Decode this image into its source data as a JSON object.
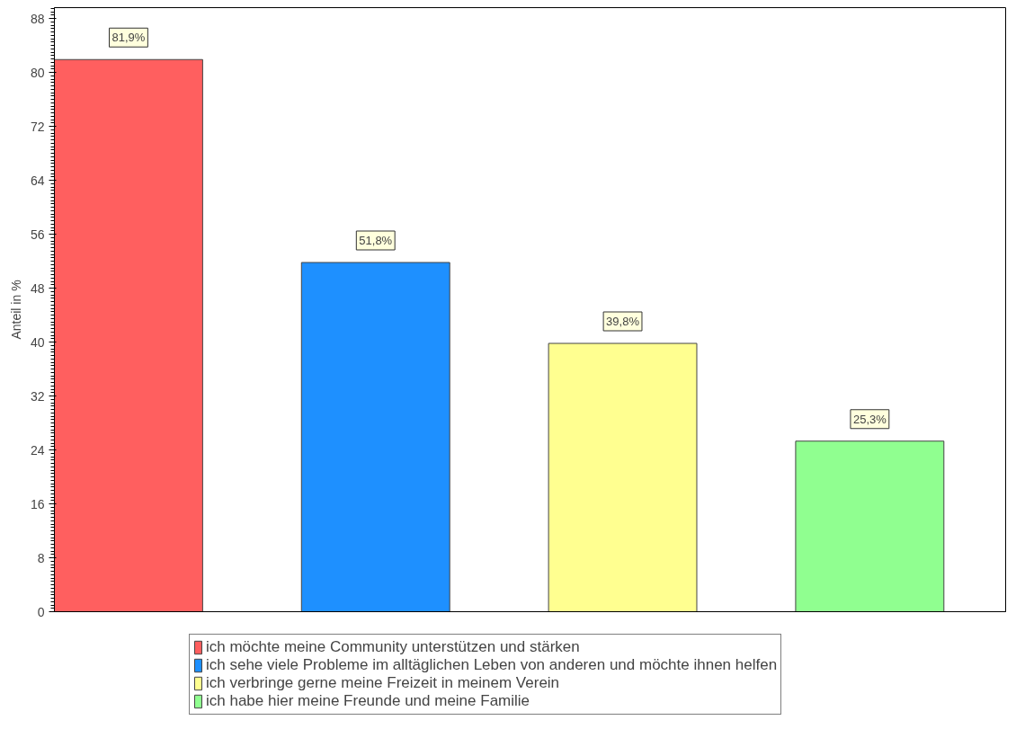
{
  "chart_data": {
    "type": "bar",
    "ylabel": "Anteil in %",
    "categories": [
      null,
      null,
      null,
      null
    ],
    "series": [
      {
        "name": "ich möchte meine Community unterstützen und stärken",
        "color": "#ff5f5f",
        "values": [
          81.9,
          null,
          null,
          null
        ],
        "value_labels": [
          "81,9%",
          null,
          null,
          null
        ]
      },
      {
        "name": "ich sehe viele Probleme im alltäglichen Leben von anderen und möchte ihnen helfen",
        "color": "#1e90ff",
        "values": [
          null,
          51.8,
          null,
          null
        ],
        "value_labels": [
          null,
          "51,8%",
          null,
          null
        ]
      },
      {
        "name": "ich verbringe gerne meine Freizeit in meinem Verein",
        "color": "#ffff90",
        "values": [
          null,
          null,
          39.8,
          null
        ],
        "value_labels": [
          null,
          null,
          "39,8%",
          null
        ]
      },
      {
        "name": "ich habe hier meine Freunde und meine Familie",
        "color": "#90ff90",
        "values": [
          null,
          null,
          null,
          25.3
        ],
        "value_labels": [
          null,
          null,
          null,
          "25,3%"
        ]
      }
    ],
    "ylim": [
      0,
      89.6
    ],
    "yticks": [
      0,
      8,
      16,
      24,
      32,
      40,
      48,
      56,
      64,
      72,
      80,
      88
    ],
    "tick_labels": "y",
    "legend": "bottom",
    "grid": false
  }
}
